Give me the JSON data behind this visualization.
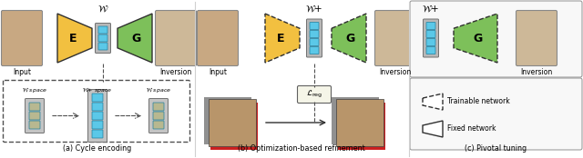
{
  "bg_color": "#ffffff",
  "panel_a_label": "(a) Cycle encoding",
  "panel_b_label": "(b) Optimization-based refinement",
  "panel_c_label": "(c) Pivotal tuning",
  "encoder_color": "#f2c040",
  "generator_color": "#7dc05a",
  "latent_color": "#5bc8e8",
  "latent_bg_color": "#b8b8b8",
  "encoder_label": "E",
  "generator_label": "G",
  "w_label": "$\\mathcal{W}$",
  "wplus_label": "$\\mathcal{W}$+",
  "input_label": "Input",
  "inversion_label": "Inversion",
  "w_space_label": "$\\mathcal{W}$ space",
  "wplus_space_label": "$\\mathcal{W}$+ space",
  "w_space2_label": "$\\mathcal{W}$ space",
  "lreg_label": "$\\mathcal{L}_{\\mathrm{reg}}$",
  "trainable_label": "Trainable network",
  "fixed_label": "Fixed network",
  "divider_color": "#d0d0d0",
  "edge_color": "#303030",
  "dashed_color": "#505050",
  "arrow_color": "#303030",
  "face_color_warm": "#c8a882",
  "face_color_light": "#cdb898",
  "face_sunglasses_color": "#b09070",
  "boy_face_color": "#b8956a",
  "red_border_color": "#cc2020",
  "gray_shadow_color": "#a0a0a0"
}
